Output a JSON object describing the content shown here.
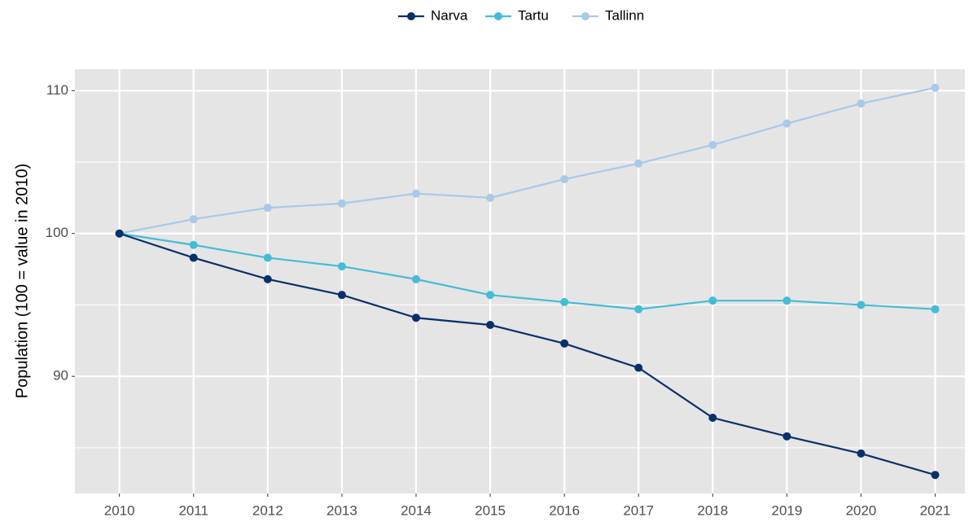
{
  "chart_data": {
    "type": "line",
    "y_label": "Population (100 = value in 2010)",
    "x": [
      2010,
      2011,
      2012,
      2013,
      2014,
      2015,
      2016,
      2017,
      2018,
      2019,
      2020,
      2021
    ],
    "series": [
      {
        "name": "Narva",
        "color": "#08306b",
        "values": [
          100,
          98.3,
          96.8,
          95.7,
          94.1,
          93.6,
          92.3,
          90.6,
          87.1,
          85.8,
          84.6,
          83.1
        ]
      },
      {
        "name": "Tartu",
        "color": "#45bcd6",
        "values": [
          100,
          99.2,
          98.3,
          97.7,
          96.8,
          95.7,
          95.2,
          94.7,
          95.3,
          95.3,
          95.0,
          94.7
        ]
      },
      {
        "name": "Tallinn",
        "color": "#a9c9e8",
        "values": [
          100,
          101.0,
          101.8,
          102.1,
          102.8,
          102.5,
          103.8,
          104.9,
          106.2,
          107.7,
          109.1,
          110.2
        ]
      }
    ],
    "xlim": [
      2009.4,
      2021.4
    ],
    "xticks": [
      2010,
      2011,
      2012,
      2013,
      2014,
      2015,
      2016,
      2017,
      2018,
      2019,
      2020,
      2021
    ],
    "ylim": [
      81.8,
      111.5
    ],
    "yticks": [
      90,
      100,
      110
    ],
    "minor_yticks": [
      85,
      95,
      105
    ],
    "grid": true,
    "legend": "top"
  }
}
